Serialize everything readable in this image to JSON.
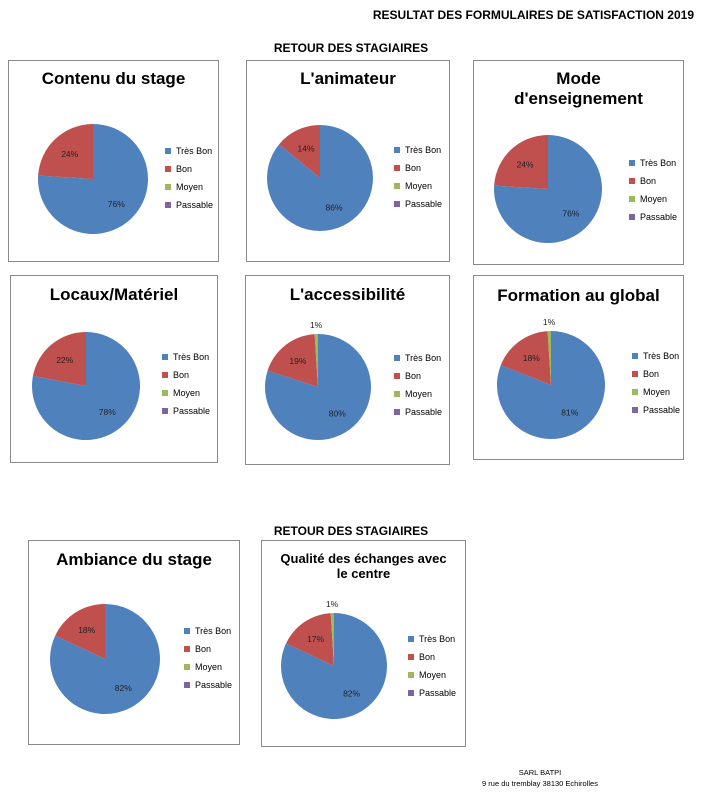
{
  "header": {
    "title": "RESULTAT DES FORMULAIRES DE SATISFACTION  2019"
  },
  "sections": [
    {
      "title": "RETOUR DES STAGIAIRES"
    },
    {
      "title": "RETOUR DES STAGIAIRES"
    }
  ],
  "legend_labels": [
    "Très Bon",
    "Bon",
    "Moyen",
    "Passable"
  ],
  "colors": {
    "tres_bon": "#4f81bd",
    "bon": "#c0504d",
    "moyen": "#9bbb59",
    "passable": "#8064a2"
  },
  "chart_data": [
    {
      "type": "pie",
      "title": "Contenu du stage",
      "categories": [
        "Très Bon",
        "Bon",
        "Moyen",
        "Passable"
      ],
      "values": [
        76,
        24,
        0,
        0
      ],
      "data_labels": [
        "76%",
        "24%",
        "",
        ""
      ]
    },
    {
      "type": "pie",
      "title": "L'animateur",
      "categories": [
        "Très Bon",
        "Bon",
        "Moyen",
        "Passable"
      ],
      "values": [
        86,
        14,
        0,
        0
      ],
      "data_labels": [
        "86%",
        "14%",
        "",
        ""
      ]
    },
    {
      "type": "pie",
      "title": "Mode d'enseignement",
      "categories": [
        "Très Bon",
        "Bon",
        "Moyen",
        "Passable"
      ],
      "values": [
        76,
        24,
        0,
        0
      ],
      "data_labels": [
        "76%",
        "24%",
        "",
        ""
      ]
    },
    {
      "type": "pie",
      "title": "Locaux/Matériel",
      "categories": [
        "Très Bon",
        "Bon",
        "Moyen",
        "Passable"
      ],
      "values": [
        78,
        22,
        0,
        0
      ],
      "data_labels": [
        "78%",
        "22%",
        "",
        ""
      ]
    },
    {
      "type": "pie",
      "title": "L'accessibilité",
      "categories": [
        "Très Bon",
        "Bon",
        "Moyen",
        "Passable"
      ],
      "values": [
        80,
        19,
        1,
        0
      ],
      "data_labels": [
        "80%",
        "19%",
        "1%",
        ""
      ]
    },
    {
      "type": "pie",
      "title": "Formation au global",
      "categories": [
        "Très Bon",
        "Bon",
        "Moyen",
        "Passable"
      ],
      "values": [
        81,
        18,
        1,
        0
      ],
      "data_labels": [
        "81%",
        "18%",
        "1%",
        ""
      ]
    },
    {
      "type": "pie",
      "title": "Ambiance du stage",
      "categories": [
        "Très Bon",
        "Bon",
        "Moyen",
        "Passable"
      ],
      "values": [
        82,
        18,
        0,
        0
      ],
      "data_labels": [
        "82%",
        "18%",
        "",
        ""
      ]
    },
    {
      "type": "pie",
      "title": "Qualité des échanges avec le centre",
      "categories": [
        "Très Bon",
        "Bon",
        "Moyen",
        "Passable"
      ],
      "values": [
        82,
        17,
        1,
        0
      ],
      "data_labels": [
        "82%",
        "17%",
        "1%",
        ""
      ]
    }
  ],
  "footer": {
    "company": "SARL BATPI",
    "address": "9 rue du tremblay 38130 Echirolles"
  }
}
